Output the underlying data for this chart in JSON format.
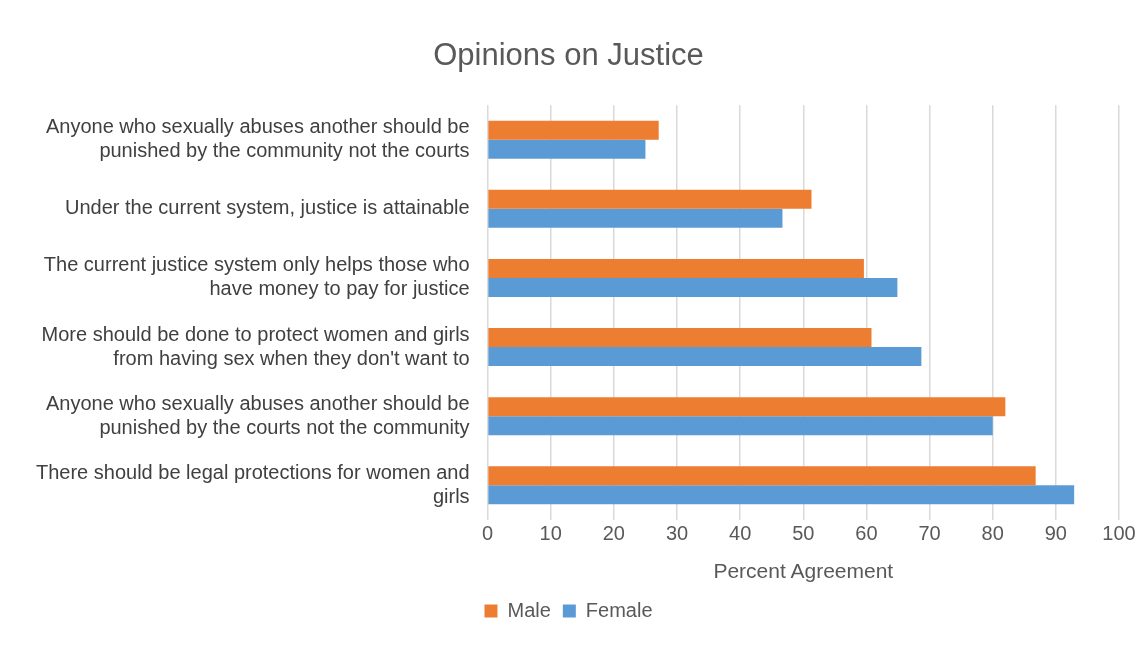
{
  "chart_data": {
    "type": "bar",
    "orientation": "horizontal",
    "title": "Opinions on Justice",
    "xlabel": "Percent Agreement",
    "categories": [
      "Anyone who sexually abuses another should be punished by the community not the courts",
      "Under the current system, justice is attainable",
      "The current justice system only helps those who have money to pay for justice",
      "More should be done to protect women and girls from having sex when they don't want to",
      "Anyone who sexually abuses another should be punished by the courts not the community",
      "There should be legal protections for women and girls"
    ],
    "series": [
      {
        "name": "Male",
        "color": "#ed7d31",
        "values": [
          27.1,
          51.3,
          59.6,
          60.8,
          82.0,
          86.8
        ]
      },
      {
        "name": "Female",
        "color": "#5b9bd5",
        "values": [
          25.0,
          46.7,
          64.9,
          68.7,
          80.0,
          92.9
        ]
      }
    ],
    "xlim": [
      0,
      100
    ],
    "xticks": [
      0,
      10,
      20,
      30,
      40,
      50,
      60,
      70,
      80,
      90,
      100
    ],
    "grid": "x",
    "legend": "bottom"
  }
}
